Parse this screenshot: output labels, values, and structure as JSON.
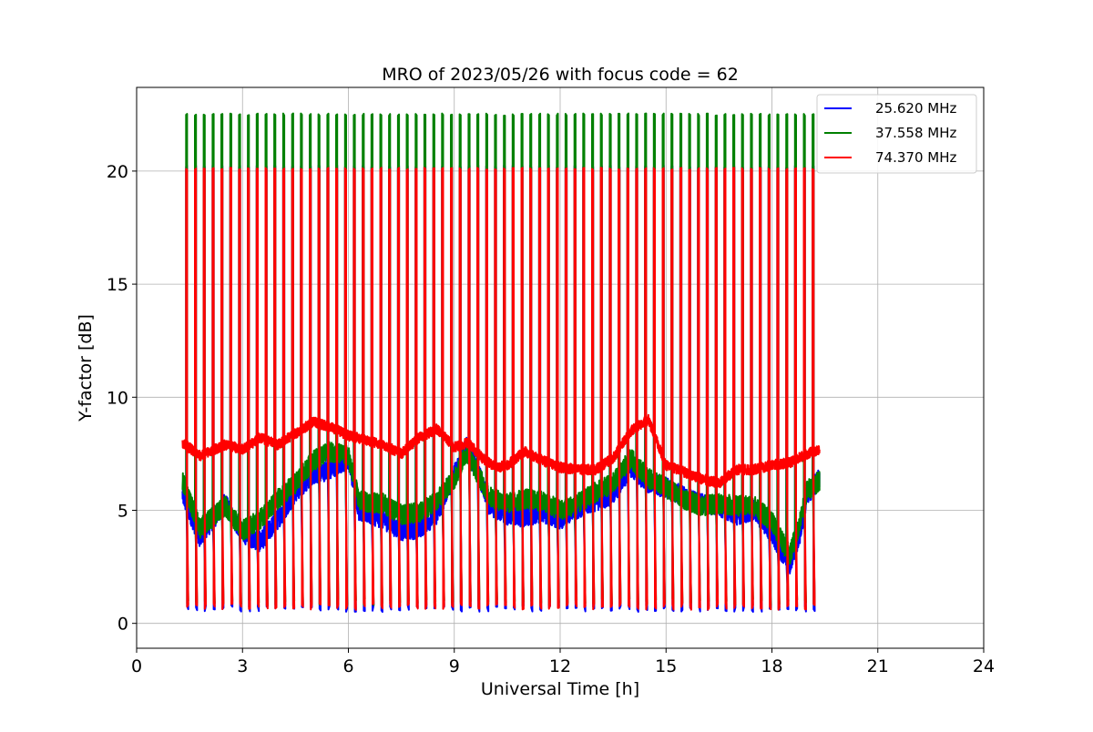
{
  "chart_data": {
    "type": "line",
    "title": "MRO of 2023/05/26 with focus code = 62",
    "xlabel": "Universal Time [h]",
    "ylabel": "Y-factor [dB]",
    "xlim": [
      0,
      24
    ],
    "ylim": [
      -1.1,
      23.7
    ],
    "xticks": [
      0,
      3,
      6,
      9,
      12,
      15,
      18,
      21,
      24
    ],
    "yticks": [
      0,
      5,
      10,
      15,
      20
    ],
    "grid": true,
    "legend_position": "top-right",
    "pulse_model": {
      "start_h": 1.3,
      "end_h": 19.35,
      "period_h": 0.25,
      "comment_free": true
    },
    "series": [
      {
        "name": "25.620 MHz",
        "color": "#0000ff",
        "baseline": [
          [
            1.3,
            5.7
          ],
          [
            1.8,
            3.8
          ],
          [
            2.5,
            5.3
          ],
          [
            3.0,
            4.0
          ],
          [
            3.5,
            3.6
          ],
          [
            4.0,
            4.6
          ],
          [
            4.5,
            5.8
          ],
          [
            5.0,
            6.6
          ],
          [
            5.5,
            6.8
          ],
          [
            6.0,
            7.3
          ],
          [
            6.3,
            5.0
          ],
          [
            7.0,
            4.6
          ],
          [
            7.5,
            4.1
          ],
          [
            8.0,
            4.2
          ],
          [
            8.5,
            4.8
          ],
          [
            9.0,
            6.6
          ],
          [
            9.35,
            7.8
          ],
          [
            9.7,
            6.6
          ],
          [
            10.0,
            5.2
          ],
          [
            10.5,
            4.8
          ],
          [
            11.0,
            4.7
          ],
          [
            11.5,
            4.9
          ],
          [
            12.0,
            4.6
          ],
          [
            12.5,
            5.1
          ],
          [
            13.0,
            5.4
          ],
          [
            13.5,
            5.7
          ],
          [
            14.0,
            6.9
          ],
          [
            14.5,
            6.2
          ],
          [
            15.0,
            6.0
          ],
          [
            15.5,
            5.6
          ],
          [
            16.0,
            5.3
          ],
          [
            16.5,
            5.2
          ],
          [
            17.0,
            4.8
          ],
          [
            17.5,
            5.0
          ],
          [
            18.0,
            4.0
          ],
          [
            18.3,
            3.1
          ],
          [
            18.5,
            2.6
          ],
          [
            18.8,
            4.0
          ],
          [
            19.0,
            5.7
          ],
          [
            19.35,
            6.4
          ]
        ],
        "pulse_high": 20.2,
        "pulse_low": 0.5
      },
      {
        "name": "37.558 MHz",
        "color": "#008000",
        "baseline": [
          [
            1.3,
            6.3
          ],
          [
            1.8,
            4.2
          ],
          [
            2.5,
            5.2
          ],
          [
            3.0,
            4.1
          ],
          [
            3.5,
            4.6
          ],
          [
            4.0,
            5.5
          ],
          [
            4.5,
            6.2
          ],
          [
            5.0,
            7.2
          ],
          [
            5.5,
            7.6
          ],
          [
            6.0,
            7.4
          ],
          [
            6.3,
            5.4
          ],
          [
            7.0,
            5.3
          ],
          [
            7.5,
            4.8
          ],
          [
            8.0,
            4.9
          ],
          [
            8.5,
            5.4
          ],
          [
            9.0,
            6.4
          ],
          [
            9.35,
            7.6
          ],
          [
            9.7,
            6.5
          ],
          [
            10.0,
            5.6
          ],
          [
            10.5,
            5.3
          ],
          [
            11.0,
            5.5
          ],
          [
            11.5,
            5.4
          ],
          [
            12.0,
            5.0
          ],
          [
            12.5,
            5.3
          ],
          [
            13.0,
            5.8
          ],
          [
            13.5,
            6.2
          ],
          [
            14.0,
            7.3
          ],
          [
            14.5,
            6.4
          ],
          [
            15.0,
            6.0
          ],
          [
            15.5,
            5.5
          ],
          [
            16.0,
            5.2
          ],
          [
            16.5,
            5.3
          ],
          [
            17.0,
            5.2
          ],
          [
            17.5,
            5.2
          ],
          [
            18.0,
            4.5
          ],
          [
            18.3,
            3.6
          ],
          [
            18.5,
            3.0
          ],
          [
            18.8,
            4.5
          ],
          [
            19.0,
            5.9
          ],
          [
            19.35,
            6.3
          ]
        ],
        "pulse_high": 22.5,
        "pulse_low": 0.8
      },
      {
        "name": "74.370 MHz",
        "color": "#ff0000",
        "baseline": [
          [
            1.3,
            8.0
          ],
          [
            1.8,
            7.4
          ],
          [
            2.5,
            7.9
          ],
          [
            3.0,
            7.7
          ],
          [
            3.5,
            8.2
          ],
          [
            4.0,
            7.9
          ],
          [
            4.5,
            8.4
          ],
          [
            5.0,
            8.9
          ],
          [
            5.5,
            8.7
          ],
          [
            6.0,
            8.3
          ],
          [
            6.5,
            8.1
          ],
          [
            7.0,
            7.9
          ],
          [
            7.5,
            7.5
          ],
          [
            8.0,
            8.2
          ],
          [
            8.5,
            8.6
          ],
          [
            9.0,
            7.8
          ],
          [
            9.4,
            8.0
          ],
          [
            9.8,
            7.3
          ],
          [
            10.2,
            6.9
          ],
          [
            10.5,
            7.0
          ],
          [
            11.0,
            7.6
          ],
          [
            11.5,
            7.2
          ],
          [
            12.0,
            6.9
          ],
          [
            12.5,
            6.8
          ],
          [
            13.0,
            6.8
          ],
          [
            13.5,
            7.3
          ],
          [
            14.0,
            8.5
          ],
          [
            14.5,
            9.0
          ],
          [
            15.0,
            7.0
          ],
          [
            15.5,
            6.7
          ],
          [
            16.0,
            6.4
          ],
          [
            16.5,
            6.2
          ],
          [
            17.0,
            6.8
          ],
          [
            17.5,
            6.8
          ],
          [
            18.0,
            7.0
          ],
          [
            18.5,
            7.1
          ],
          [
            19.0,
            7.5
          ],
          [
            19.35,
            7.7
          ]
        ],
        "pulse_high": 20.1,
        "pulse_low": 0.6
      }
    ]
  }
}
